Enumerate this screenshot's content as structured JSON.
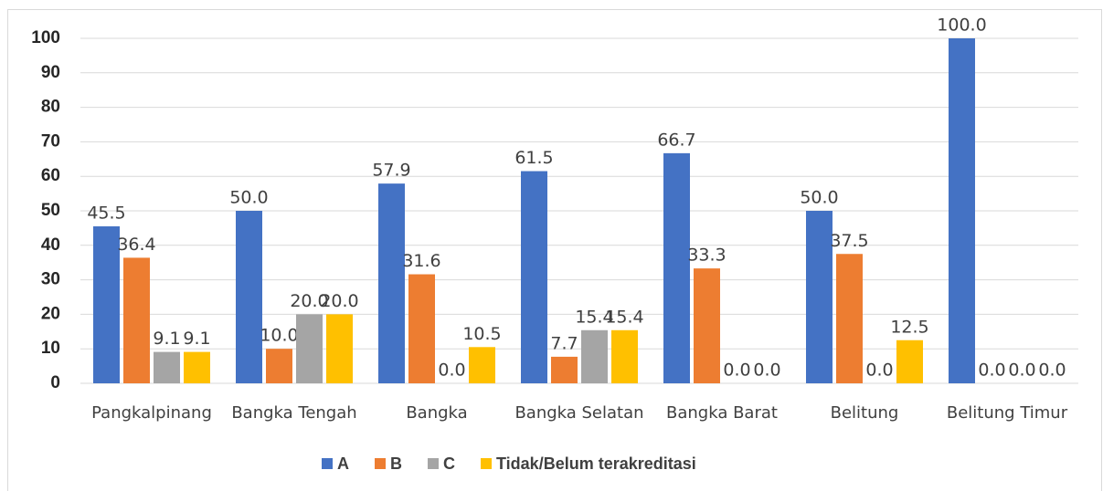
{
  "chart_data": {
    "type": "bar",
    "categories": [
      "Pangkalpinang",
      "Bangka Tengah",
      "Bangka",
      "Bangka Selatan",
      "Bangka Barat",
      "Belitung",
      "Belitung Timur"
    ],
    "series": [
      {
        "name": "A",
        "color": "#4472c4",
        "values": [
          45.5,
          50.0,
          57.9,
          61.5,
          66.7,
          50.0,
          100.0
        ],
        "value_labels": [
          "45.5",
          "50.0",
          "57.9",
          "61.5",
          "66.7",
          "50.0",
          "100.0"
        ]
      },
      {
        "name": "B",
        "color": "#ed7d31",
        "values": [
          36.4,
          10.0,
          31.6,
          7.7,
          33.3,
          37.5,
          0.0
        ],
        "value_labels": [
          "36.4",
          "10.0",
          "31.6",
          "7.7",
          "33.3",
          "37.5",
          "0.0"
        ]
      },
      {
        "name": "C",
        "color": "#a5a5a5",
        "values": [
          9.1,
          20.0,
          0.0,
          15.4,
          0.0,
          0.0,
          0.0
        ],
        "value_labels": [
          "9.1",
          "20.0",
          "0.0",
          "15.4",
          "0.0",
          "0.0",
          "0.0"
        ]
      },
      {
        "name": "Tidak/Belum terakreditasi",
        "color": "#ffc000",
        "values": [
          9.1,
          20.0,
          10.5,
          15.4,
          0.0,
          12.5,
          0.0
        ],
        "value_labels": [
          "9.1",
          "20.0",
          "10.5",
          "15.4",
          "0.0",
          "12.5",
          "0.0"
        ]
      }
    ],
    "ylim": [
      0,
      100
    ],
    "yticks": [
      0,
      10,
      20,
      30,
      40,
      50,
      60,
      70,
      80,
      90,
      100
    ],
    "grid": true,
    "legend": "bottom"
  }
}
